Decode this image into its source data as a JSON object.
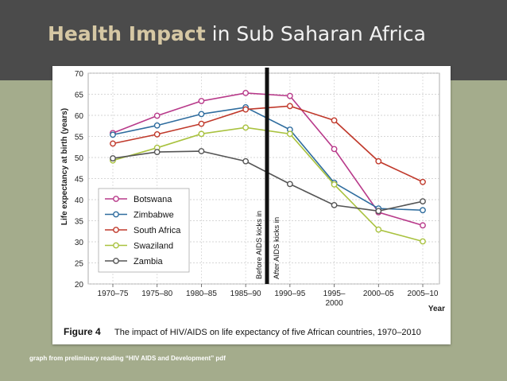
{
  "slide": {
    "title_emph": "Health Impact",
    "title_rest": " in Sub Saharan Africa",
    "caption": "graph from preliminary reading “HIV AIDS and Development” pdf",
    "header_color": "#4b4b4b",
    "background_color": "#a4ac8c"
  },
  "chart_data": {
    "type": "line",
    "title": "The impact of HIV/AIDS on life expectancy of five African countries, 1970–2010",
    "figure_label": "Figure 4",
    "ylabel": "Life expectancy at birth (years)",
    "xlabel": "Year",
    "ylim": [
      20,
      70
    ],
    "yticks": [
      20,
      25,
      30,
      35,
      40,
      45,
      50,
      55,
      60,
      65,
      70
    ],
    "categories": [
      "1970–75",
      "1975–80",
      "1980–85",
      "1985–90",
      "1990–95",
      "1995–2000",
      "2000–05",
      "2005–10"
    ],
    "category_lines": [
      [
        "1970–75"
      ],
      [
        "1975–80"
      ],
      [
        "1980–85"
      ],
      [
        "1985–90"
      ],
      [
        "1990–95"
      ],
      [
        "1995–",
        "2000"
      ],
      [
        "2000–05"
      ],
      [
        "2005–10"
      ]
    ],
    "series": [
      {
        "name": "Botswana",
        "color": "#b83a8a",
        "values": [
          55.8,
          59.9,
          63.4,
          65.3,
          64.6,
          52.0,
          37.0,
          33.9
        ]
      },
      {
        "name": "Zimbabwe",
        "color": "#2e6c9e",
        "values": [
          55.4,
          57.6,
          60.3,
          61.9,
          56.6,
          44.0,
          37.9,
          37.5
        ]
      },
      {
        "name": "South Africa",
        "color": "#c0392b",
        "values": [
          53.3,
          55.5,
          58.0,
          61.4,
          62.2,
          58.8,
          49.1,
          44.2
        ]
      },
      {
        "name": "Swaziland",
        "color": "#a9c23f",
        "values": [
          49.3,
          52.3,
          55.6,
          57.1,
          55.6,
          43.6,
          32.9,
          30.1
        ]
      },
      {
        "name": "Zambia",
        "color": "#555555",
        "values": [
          49.8,
          51.3,
          51.5,
          49.1,
          43.7,
          38.7,
          37.3,
          39.6
        ]
      }
    ],
    "divider": {
      "label_before": "Before AIDS kicks in",
      "label_after": "After AIDS kicks in"
    }
  }
}
